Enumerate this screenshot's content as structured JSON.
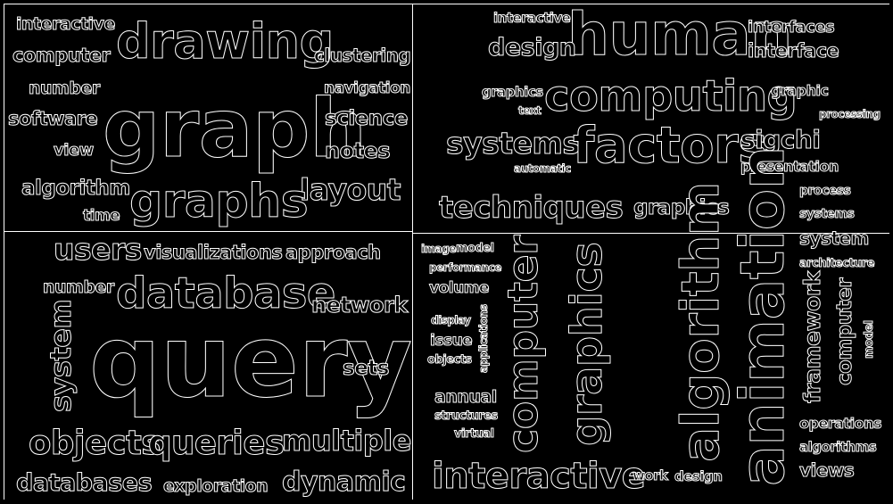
{
  "colors": {
    "background": "#000000",
    "ink": "#ffffff"
  },
  "panels": {
    "top_left": {
      "words": [
        "interactive",
        "computer",
        "drawing",
        "clustering",
        "number",
        "navigation",
        "software",
        "graph",
        "science",
        "view",
        "notes",
        "algorithm",
        "layout",
        "time",
        "graphs"
      ]
    },
    "bottom_left": {
      "words": [
        "users",
        "visualizations",
        "approach",
        "number",
        "database",
        "network",
        "system",
        "query",
        "sets",
        "objects",
        "queries",
        "multiple",
        "databases",
        "exploration",
        "dynamic"
      ]
    },
    "top_right": {
      "words": [
        "interactive",
        "human",
        "interfaces",
        "design",
        "interface",
        "graphics",
        "computing",
        "graphic",
        "text",
        "processing",
        "systems",
        "factors",
        "sigchi",
        "automatic",
        "presentation"
      ]
    },
    "bottom_right": {
      "words": [
        "techniques",
        "graphics",
        "image",
        "model",
        "performance",
        "volume",
        "display",
        "issue",
        "objects",
        "applications",
        "annual",
        "structures",
        "virtual",
        "computer",
        "graphics",
        "algorithm",
        "animation",
        "process",
        "systems",
        "system",
        "architecture",
        "framework",
        "computer",
        "model",
        "operations",
        "algorithms",
        "views",
        "interactive",
        "work",
        "design"
      ]
    }
  }
}
